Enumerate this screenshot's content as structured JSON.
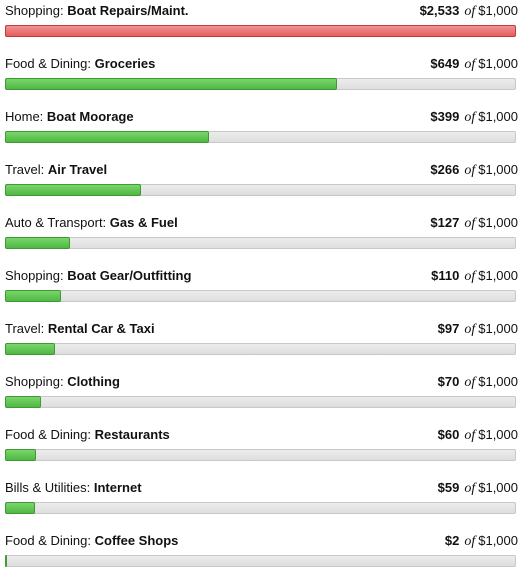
{
  "colors": {
    "under_budget": "#5cbf4e",
    "over_budget": "#e86a6a",
    "track": "#e4e4e4"
  },
  "budgets": [
    {
      "parent": "Shopping:",
      "category": "Boat Repairs/Maint.",
      "spent": "$2,533",
      "of": "of",
      "budget": "$1,000",
      "progress": 1.0,
      "over": true
    },
    {
      "parent": "Food & Dining:",
      "category": "Groceries",
      "spent": "$649",
      "of": "of",
      "budget": "$1,000",
      "progress": 0.649,
      "over": false
    },
    {
      "parent": "Home:",
      "category": "Boat Moorage",
      "spent": "$399",
      "of": "of",
      "budget": "$1,000",
      "progress": 0.399,
      "over": false
    },
    {
      "parent": "Travel:",
      "category": "Air Travel",
      "spent": "$266",
      "of": "of",
      "budget": "$1,000",
      "progress": 0.266,
      "over": false
    },
    {
      "parent": "Auto & Transport:",
      "category": "Gas & Fuel",
      "spent": "$127",
      "of": "of",
      "budget": "$1,000",
      "progress": 0.127,
      "over": false
    },
    {
      "parent": "Shopping:",
      "category": "Boat Gear/Outfitting",
      "spent": "$110",
      "of": "of",
      "budget": "$1,000",
      "progress": 0.11,
      "over": false
    },
    {
      "parent": "Travel:",
      "category": "Rental Car & Taxi",
      "spent": "$97",
      "of": "of",
      "budget": "$1,000",
      "progress": 0.097,
      "over": false
    },
    {
      "parent": "Shopping:",
      "category": "Clothing",
      "spent": "$70",
      "of": "of",
      "budget": "$1,000",
      "progress": 0.07,
      "over": false
    },
    {
      "parent": "Food & Dining:",
      "category": "Restaurants",
      "spent": "$60",
      "of": "of",
      "budget": "$1,000",
      "progress": 0.06,
      "over": false
    },
    {
      "parent": "Bills & Utilities:",
      "category": "Internet",
      "spent": "$59",
      "of": "of",
      "budget": "$1,000",
      "progress": 0.059,
      "over": false
    },
    {
      "parent": "Food & Dining:",
      "category": "Coffee Shops",
      "spent": "$2",
      "of": "of",
      "budget": "$1,000",
      "progress": 0.002,
      "over": false
    }
  ]
}
